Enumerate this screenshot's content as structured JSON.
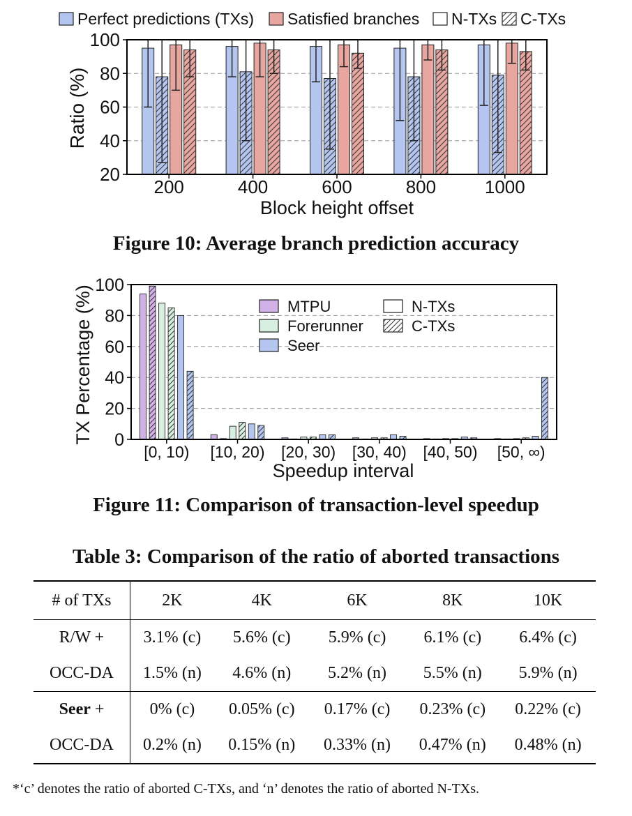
{
  "figure10": {
    "caption": "Figure 10: Average branch prediction accuracy",
    "chart_data": {
      "type": "bar",
      "xlabel": "Block height offset",
      "ylabel": "Ratio (%)",
      "ylim": [
        20,
        100
      ],
      "yticks": [
        20,
        40,
        60,
        80,
        100
      ],
      "grid": true,
      "legend_position": "top",
      "categories": [
        "200",
        "400",
        "600",
        "800",
        "1000"
      ],
      "legend": [
        {
          "name": "Perfect predictions (TXs)",
          "color": "#b4c6f0"
        },
        {
          "name": "Satisfied branches",
          "color": "#e8a6a0"
        },
        {
          "name": "N-TXs",
          "color": "#ffffff"
        },
        {
          "name": "C-TXs",
          "color": "#ffffff",
          "hatch": true
        }
      ],
      "series": [
        {
          "name": "Perfect predictions N-TXs",
          "color": "#b4c6f0",
          "hatch": false,
          "values": [
            95,
            96,
            96,
            95,
            97
          ],
          "err_low": [
            60,
            78,
            75,
            52,
            61
          ],
          "err_high": [
            100,
            100,
            100,
            100,
            100
          ]
        },
        {
          "name": "Perfect predictions C-TXs",
          "color": "#b4c6f0",
          "hatch": true,
          "values": [
            78,
            81,
            77,
            78,
            79
          ],
          "err_low": [
            27,
            40,
            35,
            40,
            33
          ],
          "err_high": [
            100,
            100,
            100,
            100,
            100
          ]
        },
        {
          "name": "Satisfied branches N-TXs",
          "color": "#e8a6a0",
          "hatch": false,
          "values": [
            97,
            98,
            97,
            97,
            98
          ],
          "err_low": [
            70,
            78,
            84,
            88,
            86
          ],
          "err_high": [
            100,
            100,
            100,
            100,
            100
          ]
        },
        {
          "name": "Satisfied branches C-TXs",
          "color": "#e8a6a0",
          "hatch": true,
          "values": [
            94,
            94,
            92,
            94,
            93
          ],
          "err_low": [
            78,
            80,
            83,
            82,
            82
          ],
          "err_high": [
            100,
            100,
            100,
            100,
            100
          ]
        }
      ]
    }
  },
  "figure11": {
    "caption": "Figure 11: Comparison of transaction-level speedup",
    "chart_data": {
      "type": "bar",
      "xlabel": "Speedup interval",
      "ylabel": "TX Percentage (%)",
      "ylim": [
        0,
        100
      ],
      "yticks": [
        0,
        20,
        40,
        60,
        80,
        100
      ],
      "grid": true,
      "legend_position": "top-center",
      "categories": [
        "[0, 10)",
        "[10, 20)",
        "[20, 30)",
        "[30, 40)",
        "[40, 50)",
        "[50, ∞)"
      ],
      "legend": [
        {
          "name": "MTPU",
          "color": "#d2b1e8"
        },
        {
          "name": "N-TXs",
          "color": "#ffffff"
        },
        {
          "name": "Forerunner",
          "color": "#d7efe0"
        },
        {
          "name": "C-TXs",
          "color": "#ffffff",
          "hatch": true
        },
        {
          "name": "Seer",
          "color": "#b4c6f0"
        }
      ],
      "series": [
        {
          "name": "MTPU N-TXs",
          "color": "#d2b1e8",
          "hatch": false,
          "values": [
            94,
            3,
            1,
            1,
            0.5,
            0.5
          ]
        },
        {
          "name": "MTPU C-TXs",
          "color": "#d2b1e8",
          "hatch": true,
          "values": [
            99,
            0.5,
            0.3,
            0.3,
            0.3,
            0.3
          ]
        },
        {
          "name": "Forerunner N-TXs",
          "color": "#d7efe0",
          "hatch": false,
          "values": [
            88,
            8.5,
            1.5,
            1,
            0.5,
            0.5
          ]
        },
        {
          "name": "Forerunner C-TXs",
          "color": "#d7efe0",
          "hatch": true,
          "values": [
            85,
            11,
            1.5,
            1,
            0.5,
            1
          ]
        },
        {
          "name": "Seer N-TXs",
          "color": "#b4c6f0",
          "hatch": false,
          "values": [
            80,
            10,
            3,
            3,
            1.5,
            2
          ]
        },
        {
          "name": "Seer C-TXs",
          "color": "#b4c6f0",
          "hatch": true,
          "values": [
            44,
            9,
            3,
            2,
            1,
            40
          ]
        }
      ]
    }
  },
  "table3": {
    "title": "Table 3: Comparison of the ratio of aborted transactions",
    "header": [
      "# of TXs",
      "2K",
      "4K",
      "6K",
      "8K",
      "10K"
    ],
    "groups": [
      {
        "label_line1": "R/W +",
        "label_line1_bold": "",
        "label_line1_rest": "",
        "label_line2": "OCC-DA",
        "row_c": [
          "3.1% (c)",
          "5.6% (c)",
          "5.9% (c)",
          "6.1% (c)",
          "6.4% (c)"
        ],
        "row_n": [
          "1.5% (n)",
          "4.6% (n)",
          "5.2% (n)",
          "5.5% (n)",
          "5.9% (n)"
        ]
      },
      {
        "label_line1_bold": "Seer",
        "label_line1_rest": " +",
        "label_line2": "OCC-DA",
        "row_c": [
          "0% (c)",
          "0.05% (c)",
          "0.17% (c)",
          "0.23% (c)",
          "0.22% (c)"
        ],
        "row_n": [
          "0.2% (n)",
          "0.15% (n)",
          "0.33% (n)",
          "0.47% (n)",
          "0.48% (n)"
        ]
      }
    ],
    "footnote": "*‘c’ denotes the ratio of aborted C-TXs, and ‘n’ denotes the ratio of aborted N-TXs."
  }
}
